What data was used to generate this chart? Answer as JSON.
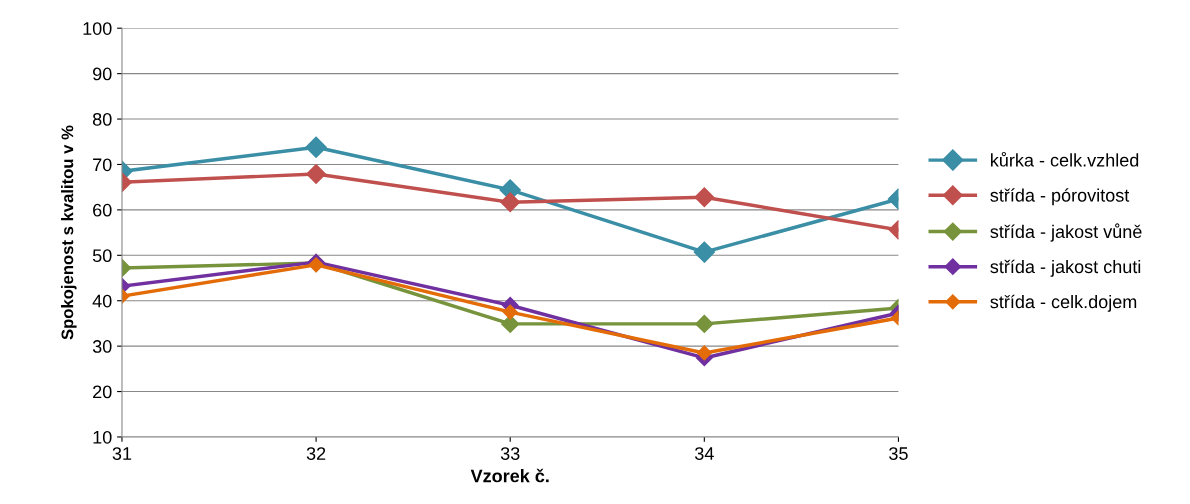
{
  "chart_data": {
    "type": "line",
    "xlabel": "Vzorek č.",
    "ylabel": "Spokojenost s kvalitou v %",
    "x": [
      31,
      32,
      33,
      34,
      35
    ],
    "xlim": [
      31,
      35
    ],
    "xticks": [
      31,
      32,
      33,
      34,
      35
    ],
    "ylim": [
      10,
      100
    ],
    "yticks": [
      10,
      20,
      30,
      40,
      50,
      60,
      70,
      80,
      90,
      100
    ],
    "grid": "y",
    "legend": "right",
    "marker": "diamond",
    "line_style": "solid",
    "series": [
      {
        "name": "kůrka - celk.vzhled",
        "color": "#3a8ea6",
        "values": [
          68.5,
          73.8,
          64.4,
          50.7,
          62.4
        ]
      },
      {
        "name": "střída - pórovitost",
        "color": "#c0504d",
        "values": [
          66.1,
          67.9,
          61.7,
          62.8,
          55.6
        ]
      },
      {
        "name": "střída - jakost vůně",
        "color": "#77933c",
        "values": [
          47.2,
          48.3,
          34.9,
          34.9,
          38.4
        ]
      },
      {
        "name": "střída - jakost chuti",
        "color": "#7030a0",
        "values": [
          43.2,
          48.5,
          39.0,
          27.4,
          37.3
        ]
      },
      {
        "name": "střída - celk.dojem",
        "color": "#e36c09",
        "values": [
          41.0,
          47.9,
          37.5,
          28.5,
          36.2
        ]
      }
    ]
  }
}
